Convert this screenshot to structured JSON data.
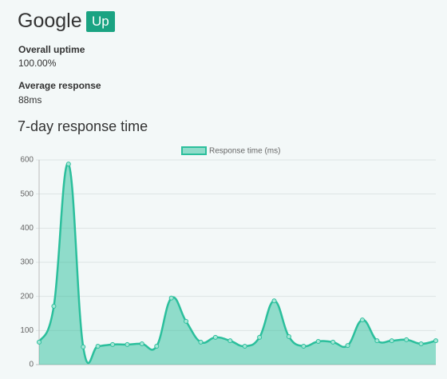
{
  "header": {
    "title": "Google",
    "status": "Up"
  },
  "stats": [
    {
      "label": "Overall uptime",
      "value": "100.00%"
    },
    {
      "label": "Average response",
      "value": "88ms"
    }
  ],
  "chart_data": {
    "type": "line",
    "title": "7-day response time",
    "categories": [
      null,
      null,
      null,
      null,
      null,
      null,
      null,
      null,
      null,
      null,
      null,
      null,
      null,
      null,
      null,
      null,
      null,
      null,
      null,
      null,
      null,
      null,
      null,
      null,
      null,
      null,
      null,
      null
    ],
    "series": [
      {
        "name": "Response time (ms)",
        "color": "#2bbf9c",
        "values": [
          66,
          171,
          588,
          52,
          54,
          59,
          59,
          61,
          54,
          195,
          127,
          66,
          80,
          70,
          54,
          80,
          187,
          82,
          54,
          68,
          66,
          56,
          131,
          70,
          70,
          73,
          61,
          70
        ]
      }
    ],
    "ylim": [
      0,
      600
    ],
    "yticks": [
      0,
      100,
      200,
      300,
      400,
      500,
      600
    ],
    "grid": true
  }
}
